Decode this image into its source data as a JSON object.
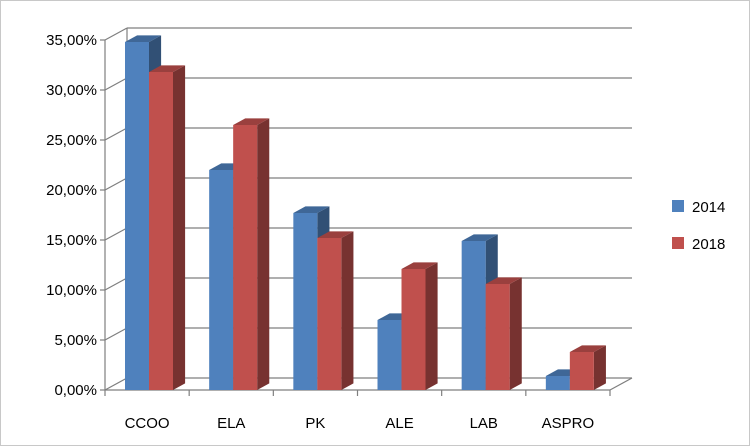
{
  "chart_data": {
    "type": "bar",
    "categories": [
      "CCOO",
      "ELA",
      "PK",
      "ALE",
      "LAB",
      "ASPRO"
    ],
    "series": [
      {
        "name": "2014",
        "values": [
          34.8,
          22.0,
          17.7,
          7.0,
          14.9,
          1.4
        ],
        "color": "#4f81bd"
      },
      {
        "name": "2018",
        "values": [
          31.8,
          26.5,
          15.2,
          12.1,
          10.6,
          3.8
        ],
        "color": "#c0504d"
      }
    ],
    "ylim": [
      0,
      35
    ],
    "yticks": [
      0,
      5,
      10,
      15,
      20,
      25,
      30,
      35
    ],
    "ytick_labels": [
      "0,00%",
      "5,00%",
      "10,00%",
      "15,00%",
      "20,00%",
      "25,00%",
      "30,00%",
      "35,00%"
    ],
    "grid": true,
    "legend_position": "right",
    "style": "3d-clustered-column",
    "title": "",
    "xlabel": "",
    "ylabel": ""
  }
}
